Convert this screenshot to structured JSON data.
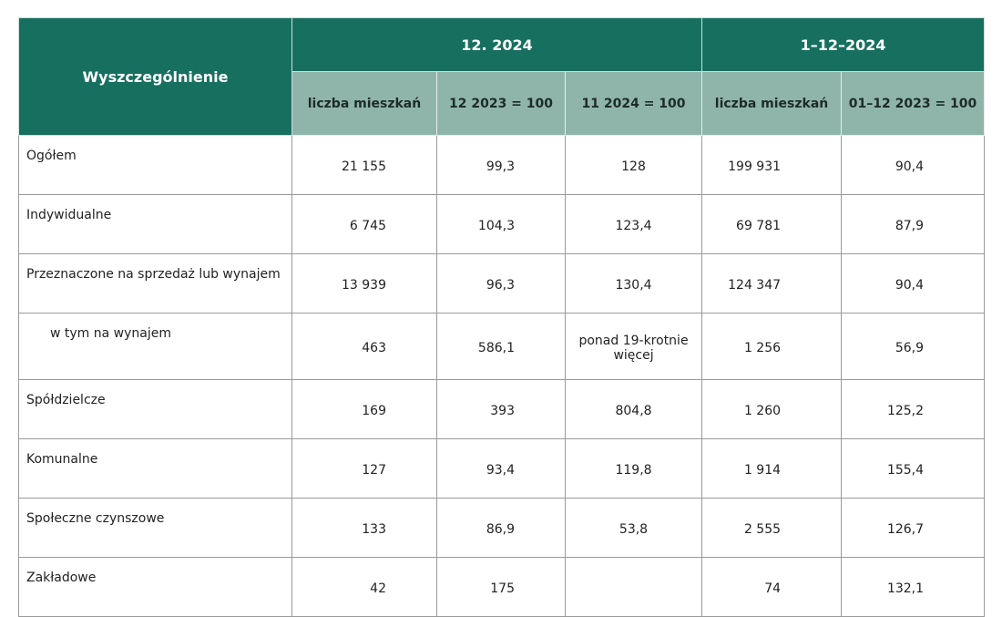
{
  "table": {
    "header": [
      "Wyszczególnienie",
      "12. 2024",
      "1–12–2024"
    ],
    "subheader": [
      "liczba mieszkań",
      "12 2023 = 100",
      "11 2024 = 100",
      "liczba mieszkań",
      "01–12 2023 = 100"
    ],
    "rows": [
      [
        "Ogółem",
        "21 155",
        "99,3",
        "128",
        "199 931",
        "90,4"
      ],
      [
        "Indywidualne",
        "6 745",
        "104,3",
        "123,4",
        "69 781",
        "87,9"
      ],
      [
        "Przeznaczone na sprzedaż lub wynajem",
        "13 939",
        "96,3",
        "130,4",
        "124 347",
        "90,4"
      ],
      [
        "w tym na wynajem",
        "463",
        "586,1",
        "ponad 19-krotnie więcej",
        "1 256",
        "56,9"
      ],
      [
        "Spółdzielcze",
        "169",
        "393",
        "804,8",
        "1 260",
        "125,2"
      ],
      [
        "Komunalne",
        "127",
        "93,4",
        "119,8",
        "1 914",
        "155,4"
      ],
      [
        "Społeczne czynszowe",
        "133",
        "86,9",
        "53,8",
        "2 555",
        "126,7"
      ],
      [
        "Zakładowe",
        "42",
        "175",
        null,
        "74",
        "132,1"
      ]
    ]
  }
}
